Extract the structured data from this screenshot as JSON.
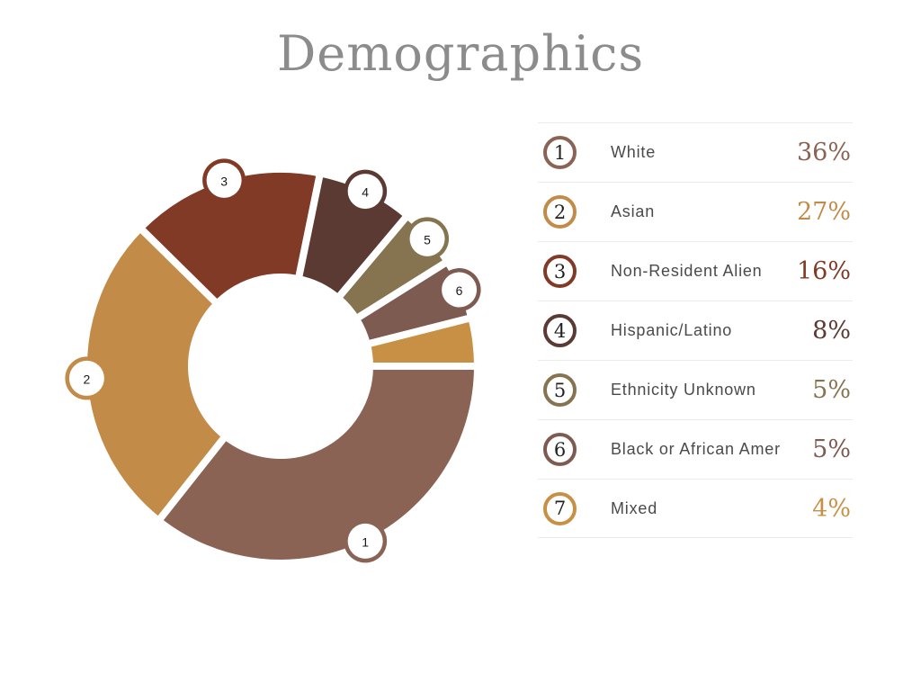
{
  "title": "Demographics",
  "chart_data": {
    "type": "pie",
    "subtype": "donut",
    "title": "Demographics",
    "start_angle_deg": 0,
    "direction": "clockwise",
    "unit": "%",
    "categories": [
      "White",
      "Asian",
      "Non-Resident Alien",
      "Hispanic/Latino",
      "Ethnicity Unknown",
      "Black or African Amer",
      "Mixed"
    ],
    "values": [
      36,
      27,
      16,
      8,
      5,
      5,
      4
    ],
    "slice_numbers": [
      "1",
      "2",
      "3",
      "4",
      "5",
      "6",
      "7"
    ],
    "marker_shown": [
      true,
      true,
      true,
      true,
      true,
      true,
      false
    ],
    "colors": [
      "#8A6355",
      "#C28B48",
      "#803A26",
      "#5B3A33",
      "#867350",
      "#7E5B51",
      "#C89045"
    ],
    "hole": true,
    "legend_position": "right"
  },
  "legend": {
    "items": [
      {
        "number": "1",
        "label": "White",
        "value": "36%",
        "color": "#8A6355"
      },
      {
        "number": "2",
        "label": "Asian",
        "value": "27%",
        "color": "#C28B48"
      },
      {
        "number": "3",
        "label": "Non-Resident Alien",
        "value": "16%",
        "color": "#803A26"
      },
      {
        "number": "4",
        "label": "Hispanic/Latino",
        "value": "8%",
        "color": "#5B3A33"
      },
      {
        "number": "5",
        "label": "Ethnicity Unknown",
        "value": "5%",
        "color": "#867350"
      },
      {
        "number": "6",
        "label": "Black or African Amer",
        "value": "5%",
        "color": "#7E5B51"
      },
      {
        "number": "7",
        "label": "Mixed",
        "value": "4%",
        "color": "#C89045"
      }
    ]
  },
  "styles": {
    "title_color": "#8C8C8C",
    "label_color": "#4A4A4A",
    "separator_color": "#ECECEC",
    "background": "#FFFFFF",
    "marker_number_color": "#1A1A1A",
    "badge_number_color": "#222222"
  }
}
